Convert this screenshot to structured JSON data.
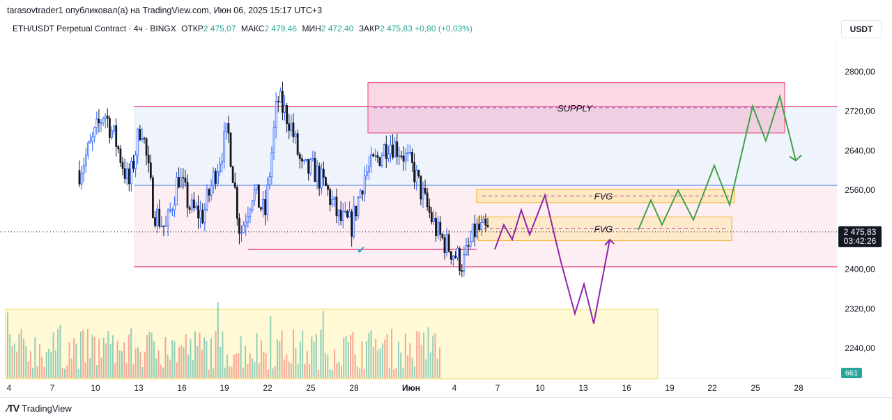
{
  "publish_line": "tarasovtrader1 опубликовал(а) на TradingView.com, Июн 06, 2025 15:17 UTC+3",
  "symbol": {
    "name": "ETH/USDT Perpetual Contract · 4ч · BINGX",
    "open_label": "ОТКР",
    "open": "2 475,07",
    "high_label": "МАКС",
    "high": "2 479,46",
    "low_label": "МИН",
    "low": "2 472,40",
    "close_label": "ЗАКР",
    "close": "2 475,83",
    "change": "+0,80 (+0,03%)"
  },
  "currency": "USDT",
  "brand": "TradingView",
  "colors": {
    "up": "#2962ff",
    "down": "#131722",
    "supply": "#f48fb1",
    "fvg": "#f5d76e",
    "purple_path": "#8e24aa",
    "green_path": "#43a047",
    "volume_zone": "#fff9c4"
  },
  "chart_data": {
    "type": "candlestick",
    "y_axis": {
      "ticks": [
        "2800,00",
        "2720,00",
        "2640,00",
        "2560,00",
        "2400,00",
        "2320,00",
        "2240,00"
      ],
      "ylim": [
        2200,
        2830
      ]
    },
    "x_axis": {
      "ticks": [
        "4",
        "7",
        "10",
        "13",
        "16",
        "19",
        "22",
        "25",
        "28",
        "Июн",
        "4",
        "7",
        "10",
        "13",
        "16",
        "19",
        "22",
        "25",
        "28"
      ]
    },
    "current_price": {
      "price": "2 475,83",
      "countdown": "03:42:26",
      "value": 2475.83
    },
    "volume_label": "661",
    "zones": [
      {
        "name": "SUPPLY",
        "top": 2778,
        "bottom": 2676
      },
      {
        "name": "FVG",
        "top": 2562,
        "bottom": 2535
      },
      {
        "name": "FVG",
        "top": 2506,
        "bottom": 2458
      }
    ],
    "levels": [
      2730,
      2570,
      2405,
      2440
    ],
    "close_path": [
      2600,
      2655,
      2720,
      2655,
      2570,
      2700,
      2520,
      2480,
      2590,
      2520,
      2510,
      2600,
      2680,
      2470,
      2560,
      2510,
      2745,
      2700,
      2600,
      2600,
      2560,
      2500,
      2490,
      2590,
      2620,
      2660,
      2640,
      2600,
      2530,
      2470,
      2440,
      2410,
      2480,
      2475
    ],
    "purple_forecast": [
      2440,
      2490,
      2460,
      2520,
      2470,
      2550,
      2420,
      2310,
      2370,
      2290,
      2460
    ],
    "green_forecast": [
      2480,
      2540,
      2490,
      2560,
      2500,
      2610,
      2530,
      2730,
      2660,
      2750,
      2620
    ]
  }
}
